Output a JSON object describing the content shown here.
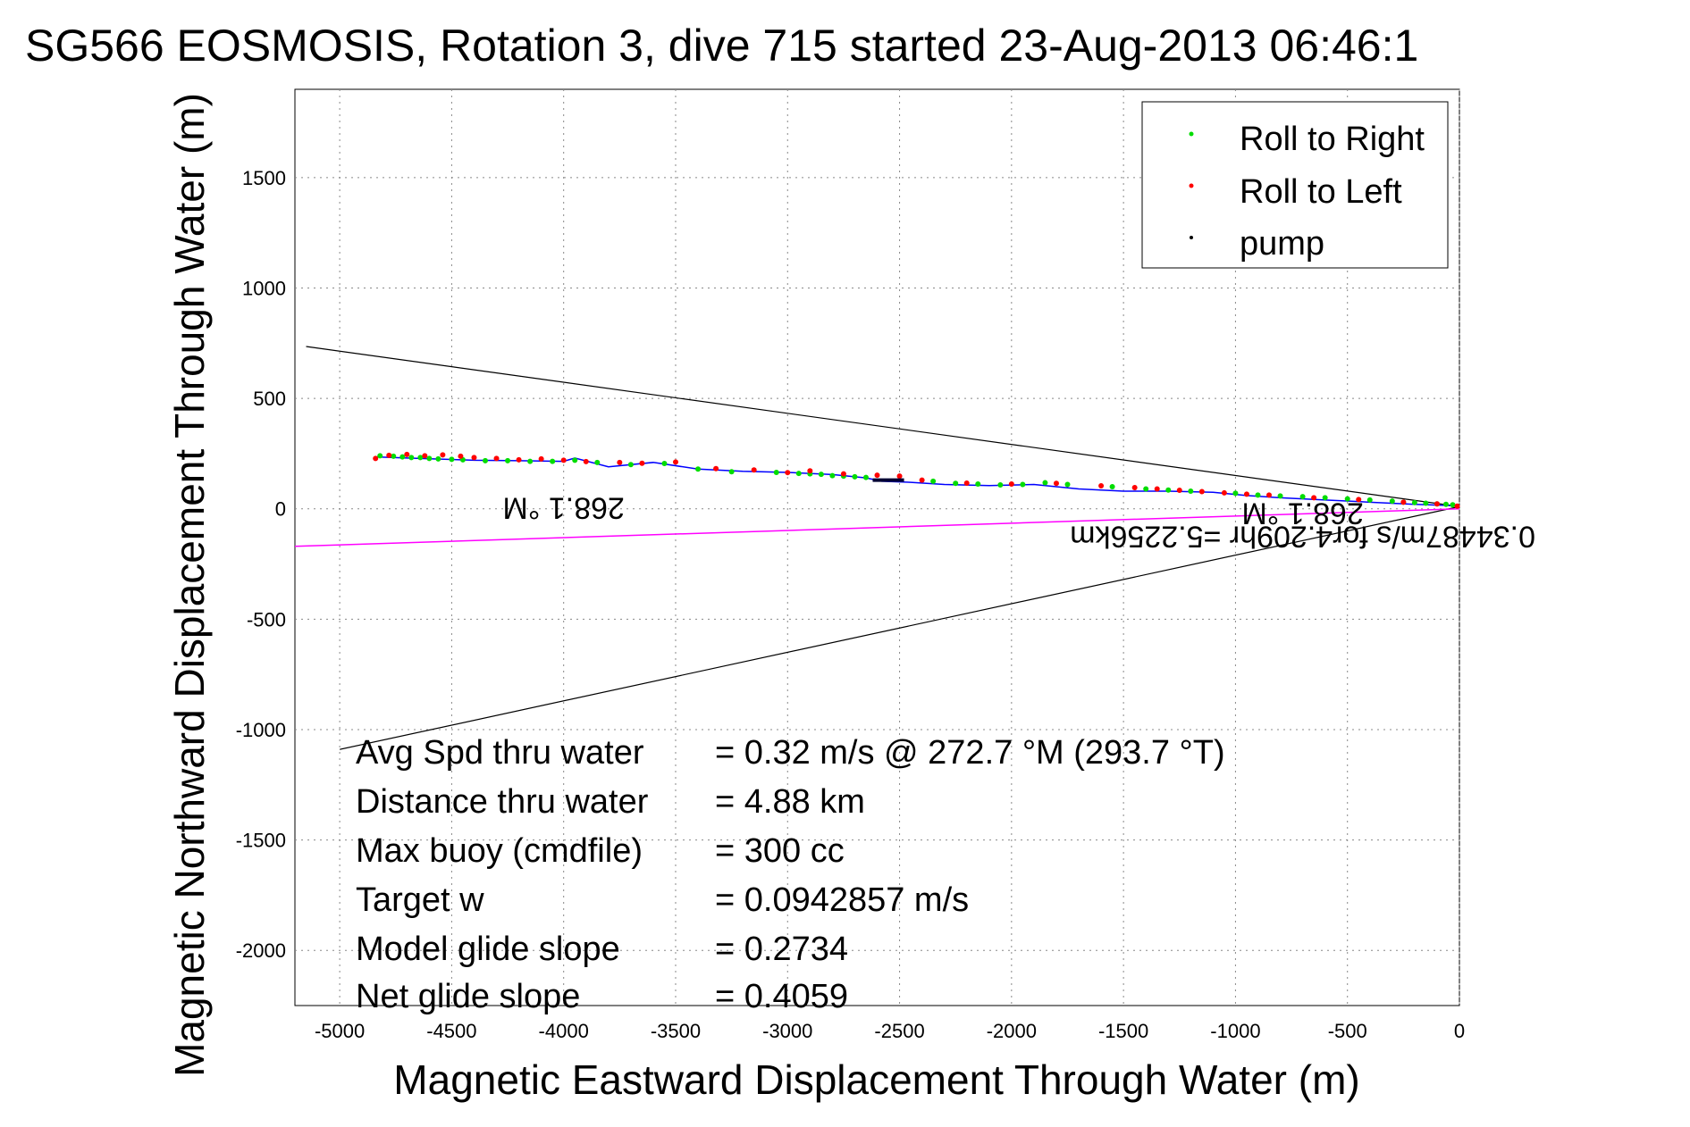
{
  "chart_data": {
    "type": "line",
    "title": "SG566 EOSMOSIS, Rotation 3, dive 715 started 23-Aug-2013 06:46:1",
    "xlabel": "Magnetic Eastward Displacement Through Water (m)",
    "ylabel": "Magnetic Northward Displacement Through Water (m)",
    "xlim": [
      -5200,
      0
    ],
    "ylim": [
      -2250,
      1900
    ],
    "grid": true,
    "legend_position": "top-right",
    "xticks": [
      -5000,
      -4500,
      -4000,
      -3500,
      -3000,
      -2500,
      -2000,
      -1500,
      -1000,
      -500,
      0
    ],
    "xtick_labels": [
      "-5000",
      "-4500",
      "-4000",
      "-3500",
      "-3000",
      "-2500",
      "-2000",
      "-1500",
      "-1000",
      "-500",
      "0"
    ],
    "yticks": [
      1500,
      1000,
      500,
      0,
      -500,
      -1000,
      -1500,
      -2000
    ],
    "ytick_labels": [
      "1500",
      "1000",
      "500",
      "0",
      "-500",
      "-1000",
      "-1500",
      "-2000"
    ],
    "legend": [
      {
        "label": "Roll to Right",
        "color": "#00dd00"
      },
      {
        "label": "Roll to Left",
        "color": "#ff0000"
      },
      {
        "label": "pump",
        "color": "#000000"
      }
    ],
    "track": {
      "name": "track",
      "color": "#0000ff",
      "x": [
        -4840,
        -4700,
        -4550,
        -4400,
        -4200,
        -4000,
        -3950,
        -3800,
        -3600,
        -3400,
        -3200,
        -3000,
        -2800,
        -2650,
        -2580,
        -2450,
        -2300,
        -2100,
        -1900,
        -1700,
        -1500,
        -1300,
        -1100,
        -950,
        -800,
        -600,
        -400,
        -200,
        -50,
        0
      ],
      "y": [
        235,
        230,
        225,
        220,
        218,
        215,
        230,
        190,
        210,
        180,
        170,
        165,
        155,
        140,
        125,
        120,
        110,
        105,
        110,
        90,
        80,
        80,
        75,
        60,
        50,
        40,
        30,
        20,
        15,
        10
      ]
    },
    "roll_right": {
      "x": [
        -4820,
        -4760,
        -4720,
        -4680,
        -4640,
        -4600,
        -4560,
        -4500,
        -4450,
        -4350,
        -4250,
        -4150,
        -4050,
        -3950,
        -3850,
        -3700,
        -3550,
        -3400,
        -3250,
        -3050,
        -2950,
        -2900,
        -2850,
        -2800,
        -2750,
        -2700,
        -2650,
        -2350,
        -2250,
        -2150,
        -2050,
        -1950,
        -1850,
        -1750,
        -1550,
        -1400,
        -1300,
        -1200,
        -1000,
        -900,
        -800,
        -700,
        -600,
        -500,
        -400,
        -300,
        -250,
        -200,
        -150,
        -100,
        -60,
        -30
      ],
      "y": [
        240,
        238,
        235,
        232,
        232,
        228,
        226,
        224,
        222,
        218,
        218,
        215,
        215,
        220,
        210,
        200,
        205,
        180,
        168,
        165,
        160,
        158,
        156,
        150,
        148,
        145,
        142,
        125,
        115,
        112,
        108,
        110,
        118,
        110,
        100,
        90,
        85,
        80,
        70,
        62,
        58,
        55,
        50,
        45,
        40,
        35,
        30,
        28,
        25,
        22,
        20,
        18
      ]
    },
    "roll_left": {
      "x": [
        -4840,
        -4780,
        -4700,
        -4620,
        -4540,
        -4460,
        -4400,
        -4300,
        -4200,
        -4100,
        -4000,
        -3900,
        -3750,
        -3650,
        -3500,
        -3320,
        -3150,
        -3000,
        -2900,
        -2750,
        -2600,
        -2500,
        -2400,
        -2200,
        -2000,
        -1800,
        -1600,
        -1450,
        -1350,
        -1250,
        -1150,
        -1050,
        -950,
        -850,
        -650,
        -450,
        -250,
        -100,
        -10
      ],
      "y": [
        228,
        242,
        246,
        240,
        244,
        238,
        232,
        228,
        222,
        226,
        220,
        214,
        210,
        206,
        212,
        182,
        176,
        164,
        172,
        158,
        152,
        148,
        130,
        116,
        112,
        115,
        104,
        96,
        90,
        84,
        78,
        72,
        66,
        62,
        50,
        42,
        30,
        22,
        12
      ]
    },
    "pump": {
      "x": [
        -2620,
        -2480
      ],
      "y": [
        130,
        130
      ]
    },
    "cone_upper": {
      "x": [
        -5150,
        0
      ],
      "y": [
        735,
        10
      ]
    },
    "cone_lower": {
      "x": [
        -5000,
        0
      ],
      "y": [
        -1090,
        10
      ]
    },
    "heading_line": {
      "color": "#ff00ff",
      "x": [
        -5200,
        0
      ],
      "y": [
        -170,
        0
      ]
    },
    "annotations": [
      {
        "text": "268.1 °M",
        "x": -4000,
        "y": 50
      },
      {
        "text": "268.1 °M",
        "x": -700,
        "y": 25
      },
      {
        "text": "0.34487m/s for4.209hr =5.2256km",
        "x": -700,
        "y": -80
      }
    ],
    "stats": [
      {
        "label": "Avg Spd thru water",
        "value": "=  0.32 m/s @ 272.7 °M (293.7 °T)"
      },
      {
        "label": "Distance thru water",
        "value": "=  4.88 km"
      },
      {
        "label": "Max buoy (cmdfile)",
        "value": "= 300 cc"
      },
      {
        "label": "Target w",
        "value": "= 0.0942857 m/s"
      },
      {
        "label": "Model glide slope",
        "value": "= 0.2734"
      },
      {
        "label": "Net glide slope",
        "value": "= 0.4059"
      }
    ]
  }
}
